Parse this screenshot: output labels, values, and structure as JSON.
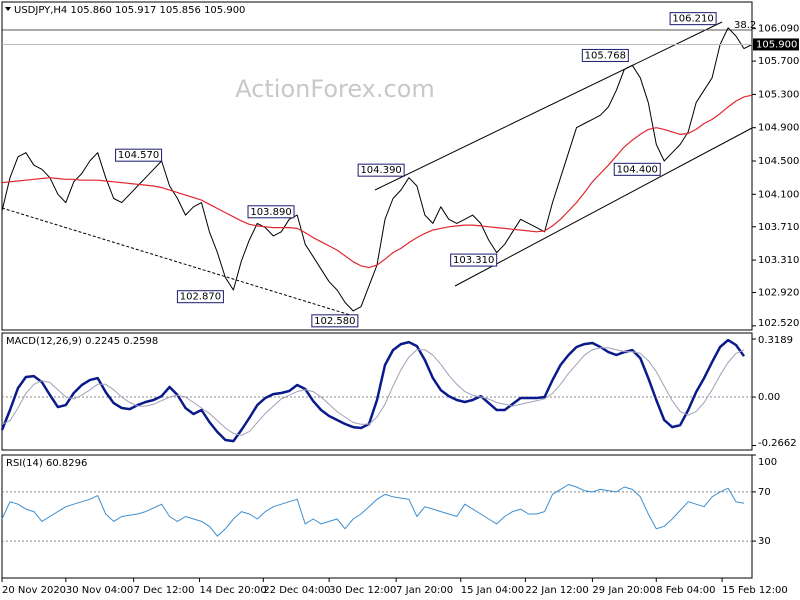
{
  "chart_data": [
    {
      "type": "line",
      "title": "USDJPY,H4  105.860 105.917 105.856 105.900",
      "watermark": "ActionForex.com",
      "xlim": [
        0,
        94
      ],
      "ylim": [
        102.47,
        106.41
      ],
      "yticks": [
        {
          "value": 106.09,
          "label": "106.090"
        },
        {
          "value": 105.7,
          "label": "105.700"
        },
        {
          "value": 105.3,
          "label": "105.300"
        },
        {
          "value": 104.9,
          "label": "104.900"
        },
        {
          "value": 104.5,
          "label": "104.500"
        },
        {
          "value": 104.1,
          "label": "104.100"
        },
        {
          "value": 103.71,
          "label": "103.710"
        },
        {
          "value": 103.31,
          "label": "103.310"
        },
        {
          "value": 102.92,
          "label": "102.920"
        },
        {
          "value": 102.52,
          "label": "102.520"
        }
      ],
      "last_price": {
        "value": 105.9,
        "label": "105.900"
      },
      "fib_label": "38.2",
      "series": [
        {
          "color": "#000000",
          "line_width": 1,
          "values": [
            103.9,
            104.3,
            104.55,
            104.6,
            104.45,
            104.4,
            104.3,
            104.1,
            104.0,
            104.25,
            104.35,
            104.5,
            104.6,
            104.3,
            104.05,
            104.0,
            104.1,
            104.2,
            104.3,
            104.4,
            104.5,
            104.2,
            104.05,
            103.85,
            103.95,
            104.0,
            103.65,
            103.4,
            103.1,
            102.95,
            103.3,
            103.55,
            103.75,
            103.7,
            103.6,
            103.65,
            103.8,
            103.85,
            103.5,
            103.35,
            103.2,
            103.05,
            102.95,
            102.8,
            102.7,
            102.75,
            103.0,
            103.25,
            103.8,
            104.05,
            104.15,
            104.3,
            104.2,
            103.85,
            103.75,
            103.95,
            103.8,
            103.75,
            103.8,
            103.85,
            103.75,
            103.55,
            103.4,
            103.5,
            103.65,
            103.8,
            103.75,
            103.7,
            103.65,
            104.0,
            104.3,
            104.6,
            104.9,
            104.95,
            105.0,
            105.05,
            105.15,
            105.35,
            105.6,
            105.65,
            105.5,
            105.2,
            104.7,
            104.5,
            104.6,
            104.7,
            104.85,
            105.2,
            105.35,
            105.5,
            105.9,
            106.1,
            106.0,
            105.85,
            105.9
          ]
        },
        {
          "color": "#e0262d",
          "line_width": 1.2,
          "values": [
            104.24,
            104.25,
            104.26,
            104.27,
            104.28,
            104.29,
            104.3,
            104.29,
            104.28,
            104.28,
            104.27,
            104.27,
            104.27,
            104.26,
            104.25,
            104.24,
            104.23,
            104.22,
            104.21,
            104.2,
            104.18,
            104.15,
            104.12,
            104.09,
            104.06,
            104.03,
            103.98,
            103.93,
            103.88,
            103.83,
            103.78,
            103.74,
            103.72,
            103.71,
            103.7,
            103.7,
            103.7,
            103.69,
            103.64,
            103.58,
            103.53,
            103.48,
            103.43,
            103.36,
            103.29,
            103.24,
            103.22,
            103.25,
            103.32,
            103.4,
            103.45,
            103.52,
            103.58,
            103.63,
            103.67,
            103.69,
            103.71,
            103.72,
            103.73,
            103.73,
            103.72,
            103.71,
            103.7,
            103.69,
            103.68,
            103.67,
            103.66,
            103.65,
            103.66,
            103.72,
            103.8,
            103.9,
            104.0,
            104.12,
            104.25,
            104.35,
            104.45,
            104.56,
            104.67,
            104.75,
            104.82,
            104.88,
            104.9,
            104.88,
            104.85,
            104.82,
            104.83,
            104.88,
            104.95,
            105.0,
            105.07,
            105.15,
            105.22,
            105.27,
            105.29
          ]
        }
      ],
      "annotations": [
        {
          "x": 20,
          "value": 104.57,
          "label": "104.570"
        },
        {
          "x": 36.6,
          "value": 103.89,
          "label": "103.890"
        },
        {
          "x": 27.75,
          "value": 102.87,
          "label": "102.870"
        },
        {
          "x": 44.6,
          "value": 102.58,
          "label": "102.580"
        },
        {
          "x": 50.4,
          "value": 104.39,
          "label": "104.390"
        },
        {
          "x": 62,
          "value": 103.31,
          "label": "103.310"
        },
        {
          "x": 78.5,
          "value": 105.768,
          "label": "105.768"
        },
        {
          "x": 89.5,
          "value": 106.21,
          "label": "106.210"
        },
        {
          "x": 82.5,
          "value": 104.4,
          "label": "104.400"
        }
      ]
    },
    {
      "type": "line",
      "title": "MACD(12,26,9) 0.2245 0.2598",
      "xlim": [
        0,
        94
      ],
      "ylim": [
        -0.291,
        0.352
      ],
      "yticks": [
        0.3189,
        {
          "value": 0,
          "label": "0.00"
        },
        -0.2662
      ],
      "level_ticks": [
        1
      ],
      "series": [
        {
          "color": "#0a1a8a",
          "line_width": 2.5,
          "values": [
            -0.181,
            -0.071,
            0.049,
            0.11,
            0.115,
            0.082,
            0.011,
            -0.055,
            -0.044,
            0.022,
            0.066,
            0.093,
            0.104,
            0.027,
            -0.033,
            -0.06,
            -0.066,
            -0.044,
            -0.027,
            -0.016,
            0.005,
            0.055,
            0.011,
            -0.06,
            -0.093,
            -0.071,
            -0.137,
            -0.192,
            -0.236,
            -0.242,
            -0.181,
            -0.115,
            -0.044,
            -0.005,
            0.016,
            0.022,
            0.033,
            0.066,
            0.044,
            -0.022,
            -0.071,
            -0.104,
            -0.126,
            -0.148,
            -0.165,
            -0.17,
            -0.148,
            -0.016,
            0.176,
            0.258,
            0.291,
            0.302,
            0.28,
            0.203,
            0.104,
            0.038,
            0.005,
            -0.016,
            -0.027,
            -0.016,
            0.005,
            -0.033,
            -0.071,
            -0.071,
            -0.038,
            -0.005,
            -0.005,
            -0.005,
            0,
            0.093,
            0.176,
            0.231,
            0.275,
            0.291,
            0.297,
            0.275,
            0.247,
            0.231,
            0.247,
            0.258,
            0.214,
            0.104,
            -0.016,
            -0.126,
            -0.165,
            -0.154,
            -0.071,
            0.027,
            0.104,
            0.192,
            0.275,
            0.313,
            0.286,
            0.2245,
            null
          ]
        },
        {
          "color": "#a0a0b8",
          "line_width": 1,
          "values": [
            -0.15,
            -0.13,
            -0.06,
            0.02,
            0.07,
            0.09,
            0.08,
            0.04,
            0.0,
            -0.01,
            0.01,
            0.04,
            0.07,
            0.07,
            0.04,
            0.0,
            -0.03,
            -0.05,
            -0.05,
            -0.04,
            -0.02,
            0.0,
            0.01,
            0.0,
            -0.03,
            -0.06,
            -0.09,
            -0.13,
            -0.17,
            -0.2,
            -0.21,
            -0.19,
            -0.14,
            -0.09,
            -0.05,
            -0.01,
            0.01,
            0.03,
            0.04,
            0.03,
            0.0,
            -0.04,
            -0.08,
            -0.11,
            -0.14,
            -0.15,
            -0.15,
            -0.11,
            -0.04,
            0.06,
            0.15,
            0.22,
            0.26,
            0.26,
            0.23,
            0.18,
            0.12,
            0.07,
            0.03,
            0.01,
            0.0,
            -0.01,
            -0.03,
            -0.04,
            -0.05,
            -0.04,
            -0.03,
            -0.02,
            -0.01,
            0.02,
            0.07,
            0.13,
            0.18,
            0.23,
            0.26,
            0.27,
            0.27,
            0.26,
            0.25,
            0.25,
            0.24,
            0.2,
            0.14,
            0.06,
            -0.02,
            -0.08,
            -0.1,
            -0.08,
            -0.03,
            0.04,
            0.12,
            0.19,
            0.24,
            0.2598,
            null
          ]
        }
      ]
    },
    {
      "type": "line",
      "title": "RSI(14) 60.8296",
      "xlim": [
        0,
        94
      ],
      "ylim": [
        0,
        100
      ],
      "yticks": [
        100,
        70,
        30
      ],
      "level_ticks": [
        1,
        2
      ],
      "xticks": [
        {
          "value": 0,
          "label": "20 Nov 2020"
        },
        {
          "value": 8,
          "label": "30 Nov 04:00"
        },
        {
          "value": 16.5,
          "label": "7 Dec 12:00"
        },
        {
          "value": 24.75,
          "label": "14 Dec 20:00"
        },
        {
          "value": 32.75,
          "label": "22 Dec 04:00"
        },
        {
          "value": 41,
          "label": "30 Dec 12:00"
        },
        {
          "value": 49.4,
          "label": "7 Jan 20:00"
        },
        {
          "value": 57.5,
          "label": "15 Jan 04:00"
        },
        {
          "value": 65.6,
          "label": "22 Jan 12:00"
        },
        {
          "value": 74,
          "label": "29 Jan 20:00"
        },
        {
          "value": 82,
          "label": "8 Feb 04:00"
        },
        {
          "value": 90.25,
          "label": "15 Feb 12:00"
        }
      ],
      "series": [
        {
          "color": "#3d8fd1",
          "line_width": 1,
          "values": [
            48,
            62,
            60,
            56,
            54,
            46,
            50,
            54,
            58,
            60,
            62,
            64,
            67,
            52,
            46,
            50,
            51,
            52,
            54,
            57,
            60,
            50,
            46,
            50,
            48,
            46,
            42,
            34,
            40,
            48,
            54,
            52,
            48,
            54,
            58,
            60,
            62,
            64,
            44,
            48,
            44,
            46,
            48,
            40,
            48,
            52,
            58,
            64,
            68,
            66,
            65,
            64,
            50,
            58,
            56,
            54,
            52,
            50,
            60,
            56,
            52,
            48,
            44,
            50,
            54,
            56,
            52,
            52,
            54,
            68,
            72,
            76,
            74,
            71,
            70,
            72,
            71,
            70,
            74,
            72,
            66,
            52,
            40,
            42,
            48,
            55,
            62,
            60,
            58,
            66,
            70,
            73,
            62,
            60.8296,
            null
          ]
        }
      ]
    }
  ]
}
